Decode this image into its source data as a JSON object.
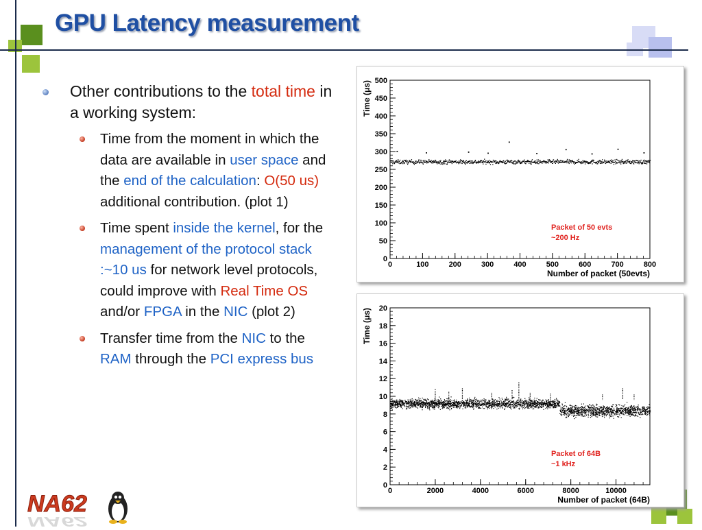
{
  "slide": {
    "title": "GPU Latency measurement",
    "bullet_main": {
      "text_before": "Other contributions to the ",
      "highlight": "total time",
      "text_after": " in a working system:"
    },
    "sub1": {
      "t1": "Time from the moment in which the data are available in ",
      "h1": "user space",
      "t2": " and the ",
      "h2": "end of the calculation",
      "t3": ": ",
      "h3": "O(50 us)",
      "t4": " additional contribution. (plot 1)"
    },
    "sub2": {
      "t1": "Time spent ",
      "h1": "inside the kernel",
      "t2": ", for the ",
      "h2": "management of the protocol stack :~10 us",
      "t3": " for network level protocols, could improve with ",
      "h3": "Real Time OS",
      "t4": " and/or ",
      "h4": "FPGA",
      "t5": " in the ",
      "h5": "NIC",
      "t6": " (plot 2)"
    },
    "sub3": {
      "t1": "Transfer time from the ",
      "h1": "NIC",
      "t2": " to the ",
      "h2": "RAM",
      "t3": " through the ",
      "h3": "PCI express bus"
    },
    "logo_text": "NA62"
  },
  "colors": {
    "title": "#1f4fa3",
    "highlight_red": "#d42a0e",
    "highlight_blue": "#1f63c6",
    "annotation_red": "#e0201c",
    "deco_green": "#5a8f1e",
    "deco_lightgreen": "#9cc43c",
    "deco_lavender": "#b8c0ee"
  },
  "chart_data": [
    {
      "type": "scatter",
      "ylabel": "Time (μs)",
      "xlabel": "Number of packet (50evts)",
      "xlim": [
        0,
        800
      ],
      "ylim": [
        0,
        500
      ],
      "xticks": [
        0,
        100,
        200,
        300,
        400,
        500,
        600,
        700,
        800
      ],
      "yticks": [
        0,
        50,
        100,
        150,
        200,
        250,
        300,
        350,
        400,
        450,
        500
      ],
      "annotation": [
        "Packet of 50 evts",
        "~200 Hz"
      ],
      "series": [
        {
          "band": {
            "x": [
              0,
              800
            ],
            "center": 272,
            "spread": 10
          },
          "points": [
            [
              20,
              302
            ],
            [
              110,
              298
            ],
            [
              240,
              300
            ],
            [
              300,
              297
            ],
            [
              365,
              328
            ],
            [
              540,
              307
            ],
            [
              700,
              308
            ],
            [
              780,
              298
            ],
            [
              450,
              296
            ],
            [
              620,
              295
            ]
          ]
        }
      ],
      "grid": false
    },
    {
      "type": "scatter",
      "ylabel": "Time (μs)",
      "xlabel": "Number of packet (64B)",
      "xlim": [
        0,
        11500
      ],
      "ylim": [
        0,
        20
      ],
      "xticks": [
        0,
        2000,
        4000,
        6000,
        8000,
        10000
      ],
      "yticks": [
        0,
        2,
        4,
        6,
        8,
        10,
        12,
        14,
        16,
        18,
        20
      ],
      "annotation": [
        "Packet of 64B",
        "~1 kHz"
      ],
      "series": [
        {
          "bands": [
            {
              "x": [
                0,
                7500
              ],
              "center": 9.2,
              "spread": 0.45
            },
            {
              "x": [
                7500,
                11500
              ],
              "center": 8.4,
              "spread": 0.55
            }
          ],
          "spikes": [
            [
              2000,
              10.8
            ],
            [
              2600,
              10.5
            ],
            [
              3200,
              10.9
            ],
            [
              4500,
              10.4
            ],
            [
              5400,
              10.7
            ],
            [
              5700,
              11.6
            ],
            [
              6200,
              10.4
            ],
            [
              7100,
              10.3
            ],
            [
              9400,
              10.2
            ],
            [
              10300,
              10.9
            ],
            [
              10800,
              10.2
            ]
          ]
        }
      ],
      "grid": false
    }
  ]
}
